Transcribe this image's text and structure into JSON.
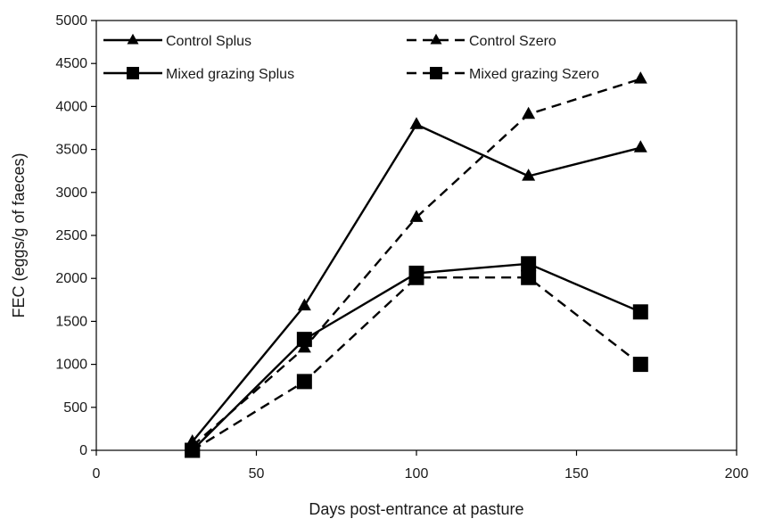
{
  "chart_data": {
    "type": "line",
    "xlabel": "Days post-entrance at pasture",
    "ylabel": "FEC (eggs/g of faeces)",
    "xlim": [
      0,
      200
    ],
    "ylim": [
      0,
      5000
    ],
    "x_ticks": [
      0,
      50,
      100,
      150,
      200
    ],
    "y_ticks": [
      0,
      500,
      1000,
      1500,
      2000,
      2500,
      3000,
      3500,
      4000,
      4500,
      5000
    ],
    "grid": false,
    "legend_position": "top",
    "series": [
      {
        "name": "Control Splus",
        "marker": "triangle",
        "line_style": "solid",
        "x": [
          30,
          65,
          100,
          135,
          170
        ],
        "y": [
          100,
          1680,
          3790,
          3190,
          3520
        ]
      },
      {
        "name": "Control Szero",
        "marker": "triangle",
        "line_style": "dashed",
        "x": [
          30,
          65,
          100,
          135,
          170
        ],
        "y": [
          50,
          1190,
          2710,
          3910,
          4320
        ]
      },
      {
        "name": "Mixed grazing Splus",
        "marker": "square",
        "line_style": "solid",
        "x": [
          30,
          65,
          100,
          135,
          170
        ],
        "y": [
          0,
          1290,
          2060,
          2170,
          1610
        ]
      },
      {
        "name": "Mixed grazing Szero",
        "marker": "square",
        "line_style": "dashed",
        "x": [
          30,
          65,
          100,
          135,
          170
        ],
        "y": [
          0,
          800,
          2010,
          2010,
          1000
        ]
      }
    ],
    "colors": {
      "line": "#000000",
      "axis": "#000000"
    }
  }
}
